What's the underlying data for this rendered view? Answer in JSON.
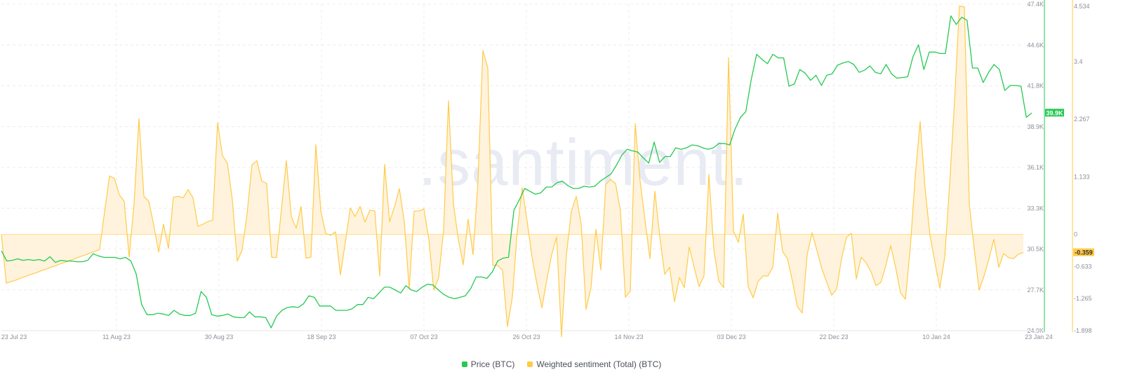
{
  "watermark": ".santiment.",
  "legend": {
    "price_label": "Price (BTC)",
    "sentiment_label": "Weighted sentiment (Total) (BTC)"
  },
  "colors": {
    "price": "#26c953",
    "sentiment": "#ffcb47",
    "sentiment_fill": "#fff3dd",
    "price_badge_bg": "#26c953",
    "sentiment_badge_bg": "#ffcb47"
  },
  "badges": {
    "price_current": "39.9K",
    "sentiment_current": "-0.359"
  },
  "chart_data": {
    "type": "line",
    "x_ticks": [
      "23 Jul 23",
      "11 Aug 23",
      "30 Aug 23",
      "18 Sep 23",
      "07 Oct 23",
      "26 Oct 23",
      "14 Nov 23",
      "03 Dec 23",
      "22 Dec 23",
      "10 Jan 24",
      "23 Jan 24"
    ],
    "price_axis": {
      "ticks": [
        "47.4K",
        "44.6K",
        "41.8K",
        "38.9K",
        "36.1K",
        "33.3K",
        "30.5K",
        "27.7K",
        "24.9K"
      ],
      "range": [
        24900,
        47400
      ]
    },
    "sentiment_axis": {
      "ticks": [
        "4.534",
        "3.4",
        "2.267",
        "1.133",
        "0",
        "-0.633",
        "-1.265",
        "-1.898"
      ],
      "range": [
        -1.898,
        4.534
      ]
    },
    "series": [
      {
        "name": "Price (BTC)",
        "axis": "left",
        "values": [
          30400,
          29700,
          29750,
          29850,
          29750,
          29800,
          29750,
          29800,
          29700,
          30000,
          29600,
          29750,
          29700,
          29700,
          29650,
          29650,
          29750,
          30200,
          30050,
          29950,
          29950,
          29950,
          29850,
          29950,
          29700,
          28800,
          26700,
          26000,
          26000,
          26100,
          26050,
          25950,
          26300,
          26050,
          25950,
          25950,
          26100,
          27600,
          27200,
          26000,
          25900,
          25950,
          26050,
          25850,
          25800,
          25800,
          26200,
          25850,
          25850,
          25800,
          25100,
          25900,
          26300,
          26500,
          26550,
          26500,
          26750,
          27300,
          27200,
          26600,
          26600,
          26600,
          26300,
          26300,
          26300,
          26400,
          26700,
          26700,
          27200,
          27100,
          27500,
          27900,
          27900,
          27700,
          27500,
          28000,
          27700,
          27600,
          27900,
          28100,
          28050,
          27700,
          27400,
          27200,
          27100,
          27200,
          27300,
          27800,
          28600,
          28600,
          28500,
          28950,
          29700,
          29900,
          29950,
          33200,
          33900,
          34700,
          34500,
          34300,
          34400,
          34800,
          34800,
          35100,
          35200,
          34900,
          34700,
          34700,
          34850,
          34800,
          34850,
          35200,
          35450,
          35700,
          36300,
          37000,
          37400,
          37300,
          37200,
          36800,
          36450,
          37900,
          36500,
          36900,
          36900,
          37500,
          37400,
          37500,
          37700,
          37650,
          37500,
          37400,
          37500,
          37800,
          37800,
          37700,
          38800,
          39600,
          40000,
          42200,
          43950,
          43600,
          43300,
          43950,
          43700,
          43700,
          41750,
          41900,
          42900,
          42650,
          42150,
          42500,
          41800,
          42500,
          42600,
          43200,
          43350,
          43450,
          43250,
          42700,
          42850,
          43150,
          42700,
          42600,
          43250,
          42600,
          42300,
          42350,
          42400,
          43800,
          44600,
          42900,
          44100,
          44100,
          44000,
          44000,
          46600,
          46000,
          46500,
          46300,
          43000,
          43000,
          42000,
          42700,
          43250,
          42900,
          41450,
          41800,
          41800,
          41750,
          39600,
          39900
        ]
      },
      {
        "name": "Weighted sentiment (Total) (BTC)",
        "axis": "right",
        "values": [
          0,
          -0.96,
          -0.93,
          -0.9,
          -0.86,
          -0.83,
          -0.79,
          -0.76,
          -0.72,
          -0.69,
          -0.65,
          -0.62,
          -0.58,
          -0.55,
          -0.51,
          -0.48,
          -0.44,
          -0.41,
          -0.37,
          -0.34,
          -0.3,
          0.45,
          1.15,
          1.1,
          0.78,
          0.65,
          -0.45,
          0.6,
          2.28,
          0.75,
          0.65,
          0.18,
          -0.35,
          0.2,
          -0.28,
          0.73,
          0.75,
          0.72,
          0.88,
          0.72,
          0.16,
          0.2,
          0.25,
          0.28,
          2.2,
          1.55,
          1.4,
          0.68,
          -0.53,
          -0.31,
          0.4,
          1.37,
          1.45,
          1.05,
          1.0,
          -0.45,
          -0.46,
          0.5,
          1.45,
          0.35,
          0.12,
          0.55,
          -0.47,
          -0.45,
          1.77,
          0.47,
          0.02,
          -0.02,
          0.05,
          -0.8,
          -0.16,
          0.52,
          0.35,
          0.55,
          0.24,
          0.48,
          0.46,
          -0.82,
          1.38,
          0.25,
          0.54,
          0.9,
          0.24,
          -1.08,
          0.46,
          0.46,
          0.5,
          -0.1,
          -1.1,
          -0.85,
          0.08,
          2.63,
          0.6,
          -0.1,
          -0.6,
          0.3,
          -0.4,
          1.05,
          3.62,
          3.28,
          -0.61,
          -0.61,
          -0.71,
          -1.82,
          -1.23,
          0.06,
          0.92,
          0.26,
          -0.45,
          -0.98,
          -1.45,
          -0.9,
          -0.4,
          -0.05,
          -2.02,
          -0.4,
          0.45,
          0.75,
          0.21,
          -1.48,
          -1.05,
          0.1,
          -0.7,
          0.98,
          1.08,
          1.0,
          0.46,
          -1.24,
          -1.12,
          2.18,
          1.05,
          0.28,
          -0.48,
          0.85,
          -0.04,
          -0.79,
          -0.65,
          -1.33,
          -0.85,
          -1.05,
          -0.25,
          -0.65,
          -1.03,
          -0.82,
          1.18,
          -0.3,
          -0.92,
          -1.05,
          3.48,
          0.06,
          -0.16,
          0.4,
          -1.03,
          -1.25,
          -0.93,
          -0.82,
          -0.82,
          -0.65,
          0.42,
          -0.34,
          -0.48,
          -0.92,
          -1.42,
          -1.55,
          -0.4,
          0.03,
          -0.32,
          -0.68,
          -0.95,
          -1.2,
          -1.08,
          -0.48,
          -0.06,
          0.02,
          -0.88,
          -0.45,
          -0.56,
          -0.74,
          -1.01,
          -0.95,
          -0.62,
          -0.22,
          -0.65,
          -1.15,
          -1.28,
          -0.25,
          1.15,
          2.22,
          0.9,
          -0.02,
          -0.55,
          -1.06,
          -0.45,
          0.98,
          2.62,
          4.5,
          4.48,
          0.6,
          -0.28,
          -1.1,
          -0.82,
          -0.48,
          -0.1,
          -0.65,
          -0.38,
          -0.46,
          -0.48,
          -0.39,
          -0.36
        ]
      }
    ],
    "grid": "dashed",
    "legend_position": "bottom-center"
  }
}
